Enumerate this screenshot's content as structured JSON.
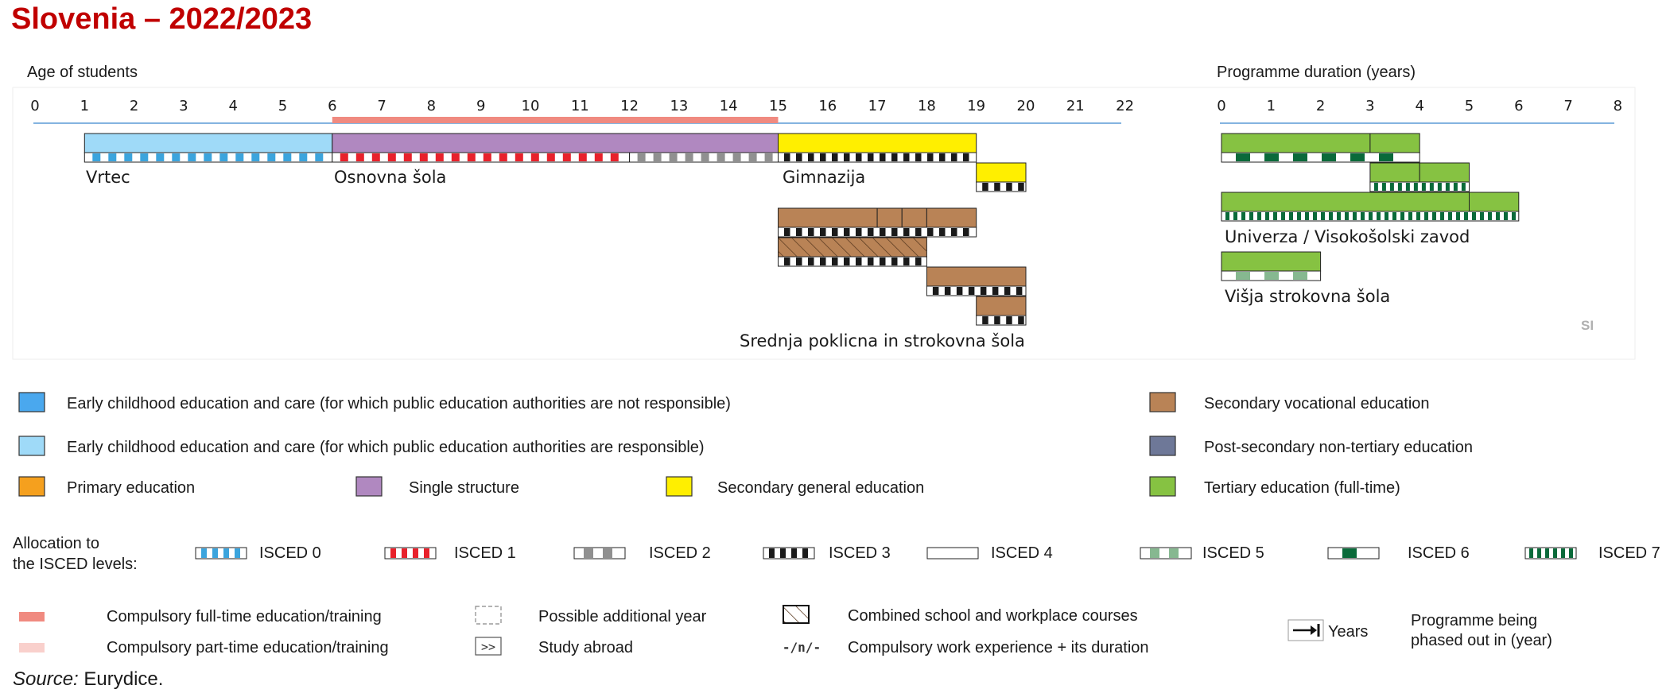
{
  "title": "Slovenia – 2022/2023",
  "age_axis": {
    "label": "Age of students",
    "min": 0,
    "max": 22,
    "ticks": [
      0,
      1,
      2,
      3,
      4,
      5,
      6,
      7,
      8,
      9,
      10,
      11,
      12,
      13,
      14,
      15,
      16,
      17,
      18,
      19,
      20,
      21,
      22
    ]
  },
  "duration_axis": {
    "label": "Programme duration (years)",
    "min": 0,
    "max": 8,
    "ticks": [
      0,
      1,
      2,
      3,
      4,
      5,
      6,
      7,
      8
    ]
  },
  "compulsory": {
    "start": 6,
    "end": 15,
    "color": "#f08a80"
  },
  "colors": {
    "ecec_not_responsible": "#4aa8ee",
    "ecec_responsible": "#9fdaf8",
    "primary": "#f5a01e",
    "single_structure": "#b088c0",
    "secondary_general": "#ffef00",
    "secondary_vocational": "#b98356",
    "post_secondary": "#6e7898",
    "tertiary": "#86c242",
    "isced0": "#3ba4dd",
    "isced1": "#e8212b",
    "isced2": "#909090",
    "isced3": "#1a1a1a",
    "isced4": "#ffffff",
    "isced5": "#86b890",
    "isced6": "#0a6a3a",
    "isced7": "#0a6a3a"
  },
  "programmes": [
    {
      "name": "Vrtec",
      "kind": "ecec_responsible",
      "segments": [
        [
          1,
          6
        ]
      ],
      "isced": [
        {
          "from": 1,
          "to": 6,
          "level": "isced0"
        }
      ]
    },
    {
      "name": "Osnovna šola",
      "kind": "single_structure",
      "segments": [
        [
          6,
          15
        ]
      ],
      "isced": [
        {
          "from": 6,
          "to": 12,
          "level": "isced1"
        },
        {
          "from": 12,
          "to": 15,
          "level": "isced2"
        }
      ]
    },
    {
      "name": "Gimnazija",
      "kind": "secondary_general",
      "segments": [
        [
          15,
          19
        ]
      ],
      "isced": [
        {
          "from": 15,
          "to": 19,
          "level": "isced3"
        }
      ]
    },
    {
      "name": "",
      "kind": "secondary_general",
      "segments": [
        [
          19,
          20
        ]
      ],
      "isced": [
        {
          "from": 19,
          "to": 20,
          "level": "isced3"
        }
      ]
    },
    {
      "name": "",
      "kind": "secondary_vocational",
      "segments": [
        [
          15,
          17
        ],
        [
          17,
          17.5
        ],
        [
          17.5,
          18
        ],
        [
          18,
          19
        ]
      ],
      "isced": [
        {
          "from": 15,
          "to": 19,
          "level": "isced3"
        }
      ]
    },
    {
      "name": "",
      "kind": "secondary_vocational",
      "combined": true,
      "segments": [
        [
          15,
          18
        ]
      ],
      "isced": [
        {
          "from": 15,
          "to": 18,
          "level": "isced3"
        }
      ]
    },
    {
      "name": "",
      "kind": "secondary_vocational",
      "segments": [
        [
          18,
          20
        ]
      ],
      "isced": [
        {
          "from": 18,
          "to": 20,
          "level": "isced3"
        }
      ]
    },
    {
      "name": "",
      "kind": "secondary_vocational",
      "segments": [
        [
          19,
          20
        ]
      ],
      "isced": [
        {
          "from": 19,
          "to": 20,
          "level": "isced3"
        }
      ]
    },
    {
      "name": "Srednja poklicna in strokovna šola",
      "kind": "label_only"
    }
  ],
  "tertiary_programmes": [
    {
      "name": "",
      "segments": [
        [
          0,
          3
        ],
        [
          3,
          4
        ]
      ],
      "isced": [
        {
          "from": 0,
          "to": 4,
          "level": "isced6"
        }
      ]
    },
    {
      "name": "",
      "segments": [
        [
          3,
          4
        ],
        [
          4,
          5
        ]
      ],
      "isced": [
        {
          "from": 3,
          "to": 5,
          "level": "isced7"
        }
      ]
    },
    {
      "name": "Univerza / Visokošolski zavod",
      "segments": [
        [
          0,
          5
        ],
        [
          5,
          6
        ]
      ],
      "isced": [
        {
          "from": 0,
          "to": 6,
          "level": "isced7"
        }
      ]
    },
    {
      "name": "Višja strokovna šola",
      "segments": [
        [
          0,
          2
        ]
      ],
      "isced": [
        {
          "from": 0,
          "to": 2,
          "level": "isced5"
        }
      ]
    }
  ],
  "country_code": "SI",
  "legend": {
    "categories": [
      {
        "key": "ecec_not_responsible",
        "label": "Early childhood education and care (for which public education authorities are not responsible)"
      },
      {
        "key": "ecec_responsible",
        "label": "Early childhood education and care (for which public education authorities are responsible)"
      },
      {
        "key": "primary",
        "label": "Primary education"
      },
      {
        "key": "single_structure",
        "label": "Single structure"
      },
      {
        "key": "secondary_general",
        "label": "Secondary general education"
      },
      {
        "key": "secondary_vocational",
        "label": "Secondary vocational education"
      },
      {
        "key": "post_secondary",
        "label": "Post-secondary non-tertiary education"
      },
      {
        "key": "tertiary",
        "label": "Tertiary education (full-time)"
      }
    ],
    "isced_title_line1": "Allocation to",
    "isced_title_line2": "the ISCED levels:",
    "isced": [
      {
        "key": "isced0",
        "label": "ISCED 0"
      },
      {
        "key": "isced1",
        "label": "ISCED 1"
      },
      {
        "key": "isced2",
        "label": "ISCED 2"
      },
      {
        "key": "isced3",
        "label": "ISCED 3"
      },
      {
        "key": "isced4",
        "label": "ISCED 4"
      },
      {
        "key": "isced5",
        "label": "ISCED 5"
      },
      {
        "key": "isced6",
        "label": "ISCED 6"
      },
      {
        "key": "isced7",
        "label": "ISCED 7"
      }
    ],
    "other": {
      "compulsory_full": "Compulsory full-time education/training",
      "compulsory_part": "Compulsory part-time education/training",
      "additional_year": "Possible additional year",
      "study_abroad": "Study abroad",
      "study_abroad_symbol": ">>",
      "combined": "Combined school and workplace courses",
      "work_experience": "Compulsory work experience + its duration",
      "work_experience_symbol": "-/n/-",
      "years": "Years",
      "phased_out_line1": "Programme being",
      "phased_out_line2": "phased out in (year)"
    }
  },
  "source_label": "Source:",
  "source_value": " Eurydice."
}
